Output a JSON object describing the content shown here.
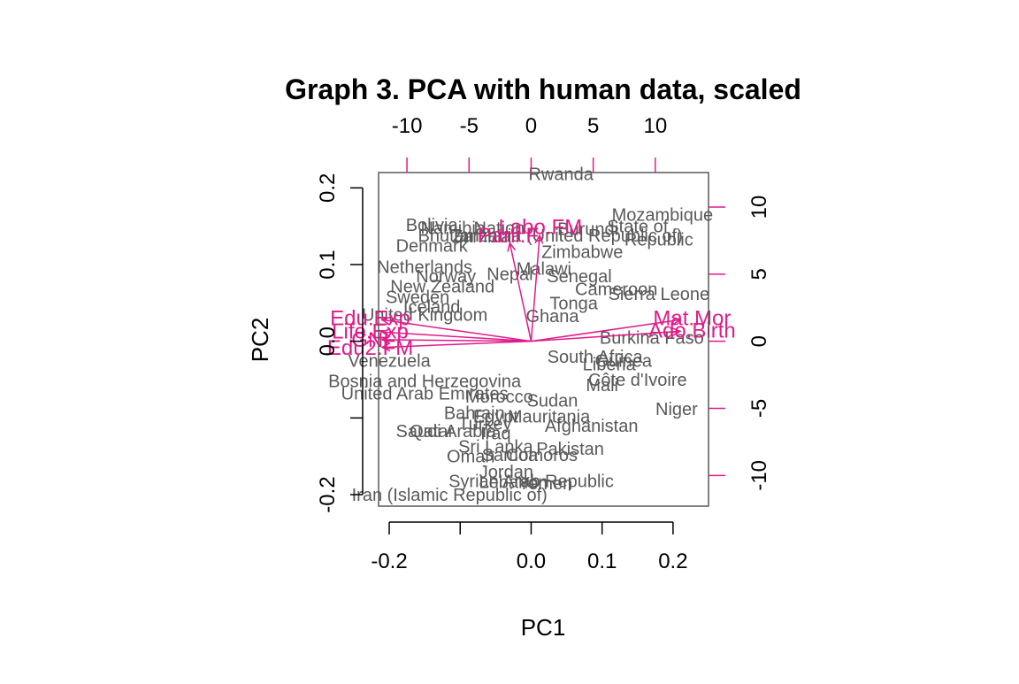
{
  "chart_data": {
    "type": "scatter",
    "subtype": "biplot",
    "title": "Graph 3. PCA with human data, scaled",
    "xlabel": "PC1",
    "ylabel": "PC2",
    "xlim": [
      -0.215,
      0.25
    ],
    "ylim": [
      -0.215,
      0.22
    ],
    "x_ticks": [
      -0.2,
      0.0,
      0.1,
      0.2
    ],
    "x_tick_labels": [
      "-0.2",
      "0.0",
      "0.1",
      "0.2"
    ],
    "x_minor_ticks": [
      -0.1
    ],
    "y_ticks": [
      -0.2,
      -0.1,
      0.0,
      0.1,
      0.2
    ],
    "y_tick_labels": [
      "-0.2",
      "",
      "0.0",
      "0.1",
      "0.2"
    ],
    "secondary_x_ticks": [
      -10,
      -5,
      0,
      5,
      10
    ],
    "secondary_x_tick_labels": [
      "-10",
      "-5",
      "0",
      "5",
      "10"
    ],
    "secondary_y_ticks": [
      -10,
      -5,
      0,
      5,
      10
    ],
    "secondary_y_tick_labels": [
      "-10",
      "-5",
      "0",
      "5",
      "10"
    ],
    "secondary_scale": 0.0175,
    "grid": false,
    "legend": "none",
    "colors": {
      "observations": "#595959",
      "variables": "#e11b8a",
      "frame": "#595959"
    },
    "observations": [
      {
        "label": "Rwanda",
        "x": 0.042,
        "y": 0.218
      },
      {
        "label": "Mozambique",
        "x": 0.185,
        "y": 0.165
      },
      {
        "label": "Bolivia",
        "x": -0.14,
        "y": 0.152
      },
      {
        "label": "Namibia",
        "x": -0.11,
        "y": 0.148
      },
      {
        "label": "Burundi",
        "x": 0.08,
        "y": 0.147
      },
      {
        "label": "Nation",
        "x": -0.045,
        "y": 0.148
      },
      {
        "label": "Tanzania (United Republic of)",
        "x": 0.05,
        "y": 0.138
      },
      {
        "label": "State of",
        "x": 0.15,
        "y": 0.15
      },
      {
        "label": "Bhutan",
        "x": -0.12,
        "y": 0.138
      },
      {
        "label": "Zambia",
        "x": -0.07,
        "y": 0.137
      },
      {
        "label": "Republic",
        "x": 0.18,
        "y": 0.133
      },
      {
        "label": "Denmark",
        "x": -0.14,
        "y": 0.125
      },
      {
        "label": "Zimbabwe",
        "x": 0.072,
        "y": 0.117
      },
      {
        "label": "Netherlands",
        "x": -0.15,
        "y": 0.097
      },
      {
        "label": "Malawi",
        "x": 0.018,
        "y": 0.095
      },
      {
        "label": "Senegal",
        "x": 0.068,
        "y": 0.085
      },
      {
        "label": "Norway",
        "x": -0.12,
        "y": 0.085
      },
      {
        "label": "Nepal",
        "x": -0.03,
        "y": 0.088
      },
      {
        "label": "Cameroon",
        "x": 0.12,
        "y": 0.068
      },
      {
        "label": "New Zealand",
        "x": -0.125,
        "y": 0.072
      },
      {
        "label": "Sierra Leone",
        "x": 0.18,
        "y": 0.062
      },
      {
        "label": "Sweden",
        "x": -0.16,
        "y": 0.058
      },
      {
        "label": "Tonga",
        "x": 0.06,
        "y": 0.05
      },
      {
        "label": "Burkina Faso",
        "x": 0.17,
        "y": 0.005
      },
      {
        "label": "Iceland",
        "x": -0.14,
        "y": 0.045
      },
      {
        "label": "United Kingdom",
        "x": -0.15,
        "y": 0.035
      },
      {
        "label": "Ghana",
        "x": 0.03,
        "y": 0.033
      },
      {
        "label": "Venezuela",
        "x": -0.2,
        "y": -0.025
      },
      {
        "label": "South Africa",
        "x": 0.09,
        "y": -0.02
      },
      {
        "label": "Guinea",
        "x": 0.13,
        "y": -0.025
      },
      {
        "label": "Liberia",
        "x": 0.11,
        "y": -0.03
      },
      {
        "label": "Bosnia and Herzegovina",
        "x": -0.15,
        "y": -0.052
      },
      {
        "label": "Côte d'Ivoire",
        "x": 0.15,
        "y": -0.05
      },
      {
        "label": "Mali",
        "x": 0.1,
        "y": -0.057
      },
      {
        "label": "United Arab Emirates",
        "x": -0.15,
        "y": -0.068
      },
      {
        "label": "Morocco",
        "x": -0.045,
        "y": -0.072
      },
      {
        "label": "Sudan",
        "x": 0.03,
        "y": -0.077
      },
      {
        "label": "Niger",
        "x": 0.205,
        "y": -0.088
      },
      {
        "label": "Bahrain",
        "x": -0.08,
        "y": -0.093
      },
      {
        "label": "Mauritania",
        "x": 0.025,
        "y": -0.098
      },
      {
        "label": "Egypt",
        "x": -0.05,
        "y": -0.098
      },
      {
        "label": "Turkey",
        "x": -0.065,
        "y": -0.107
      },
      {
        "label": "Afghanistan",
        "x": 0.085,
        "y": -0.11
      },
      {
        "label": "Qatar",
        "x": -0.14,
        "y": -0.117
      },
      {
        "label": "Saudi Arabia",
        "x": -0.12,
        "y": -0.117
      },
      {
        "label": "Iraq",
        "x": -0.05,
        "y": -0.12
      },
      {
        "label": "Sri Lanka",
        "x": -0.05,
        "y": -0.137
      },
      {
        "label": "Pakistan",
        "x": 0.055,
        "y": -0.14
      },
      {
        "label": "Oman",
        "x": -0.085,
        "y": -0.15
      },
      {
        "label": "Samoa",
        "x": -0.03,
        "y": -0.148
      },
      {
        "label": "Comoros",
        "x": 0.015,
        "y": -0.148
      },
      {
        "label": "Jordan",
        "x": -0.035,
        "y": -0.17
      },
      {
        "label": "Syrian Arab Republic",
        "x": 0.0,
        "y": -0.182
      },
      {
        "label": "Lebanon",
        "x": -0.025,
        "y": -0.183
      },
      {
        "label": "Iran (Islamic Republic of)",
        "x": -0.115,
        "y": -0.2
      },
      {
        "label": "Yemen",
        "x": 0.02,
        "y": -0.185
      }
    ],
    "variables": [
      {
        "label": "Labo.FM",
        "x": 0.012,
        "y": 0.138
      },
      {
        "label": "Parli.F",
        "x": -0.03,
        "y": 0.128
      },
      {
        "label": "Edu.Exp",
        "x": -0.21,
        "y": 0.028
      },
      {
        "label": "Life.Exp",
        "x": -0.21,
        "y": 0.012
      },
      {
        "label": "GNI",
        "x": -0.21,
        "y": 0.002
      },
      {
        "label": "Edu2.FM",
        "x": -0.21,
        "y": -0.008
      },
      {
        "label": "Mat.Mor",
        "x": 0.21,
        "y": 0.028
      },
      {
        "label": "Ado.Birth",
        "x": 0.21,
        "y": 0.013
      }
    ]
  }
}
